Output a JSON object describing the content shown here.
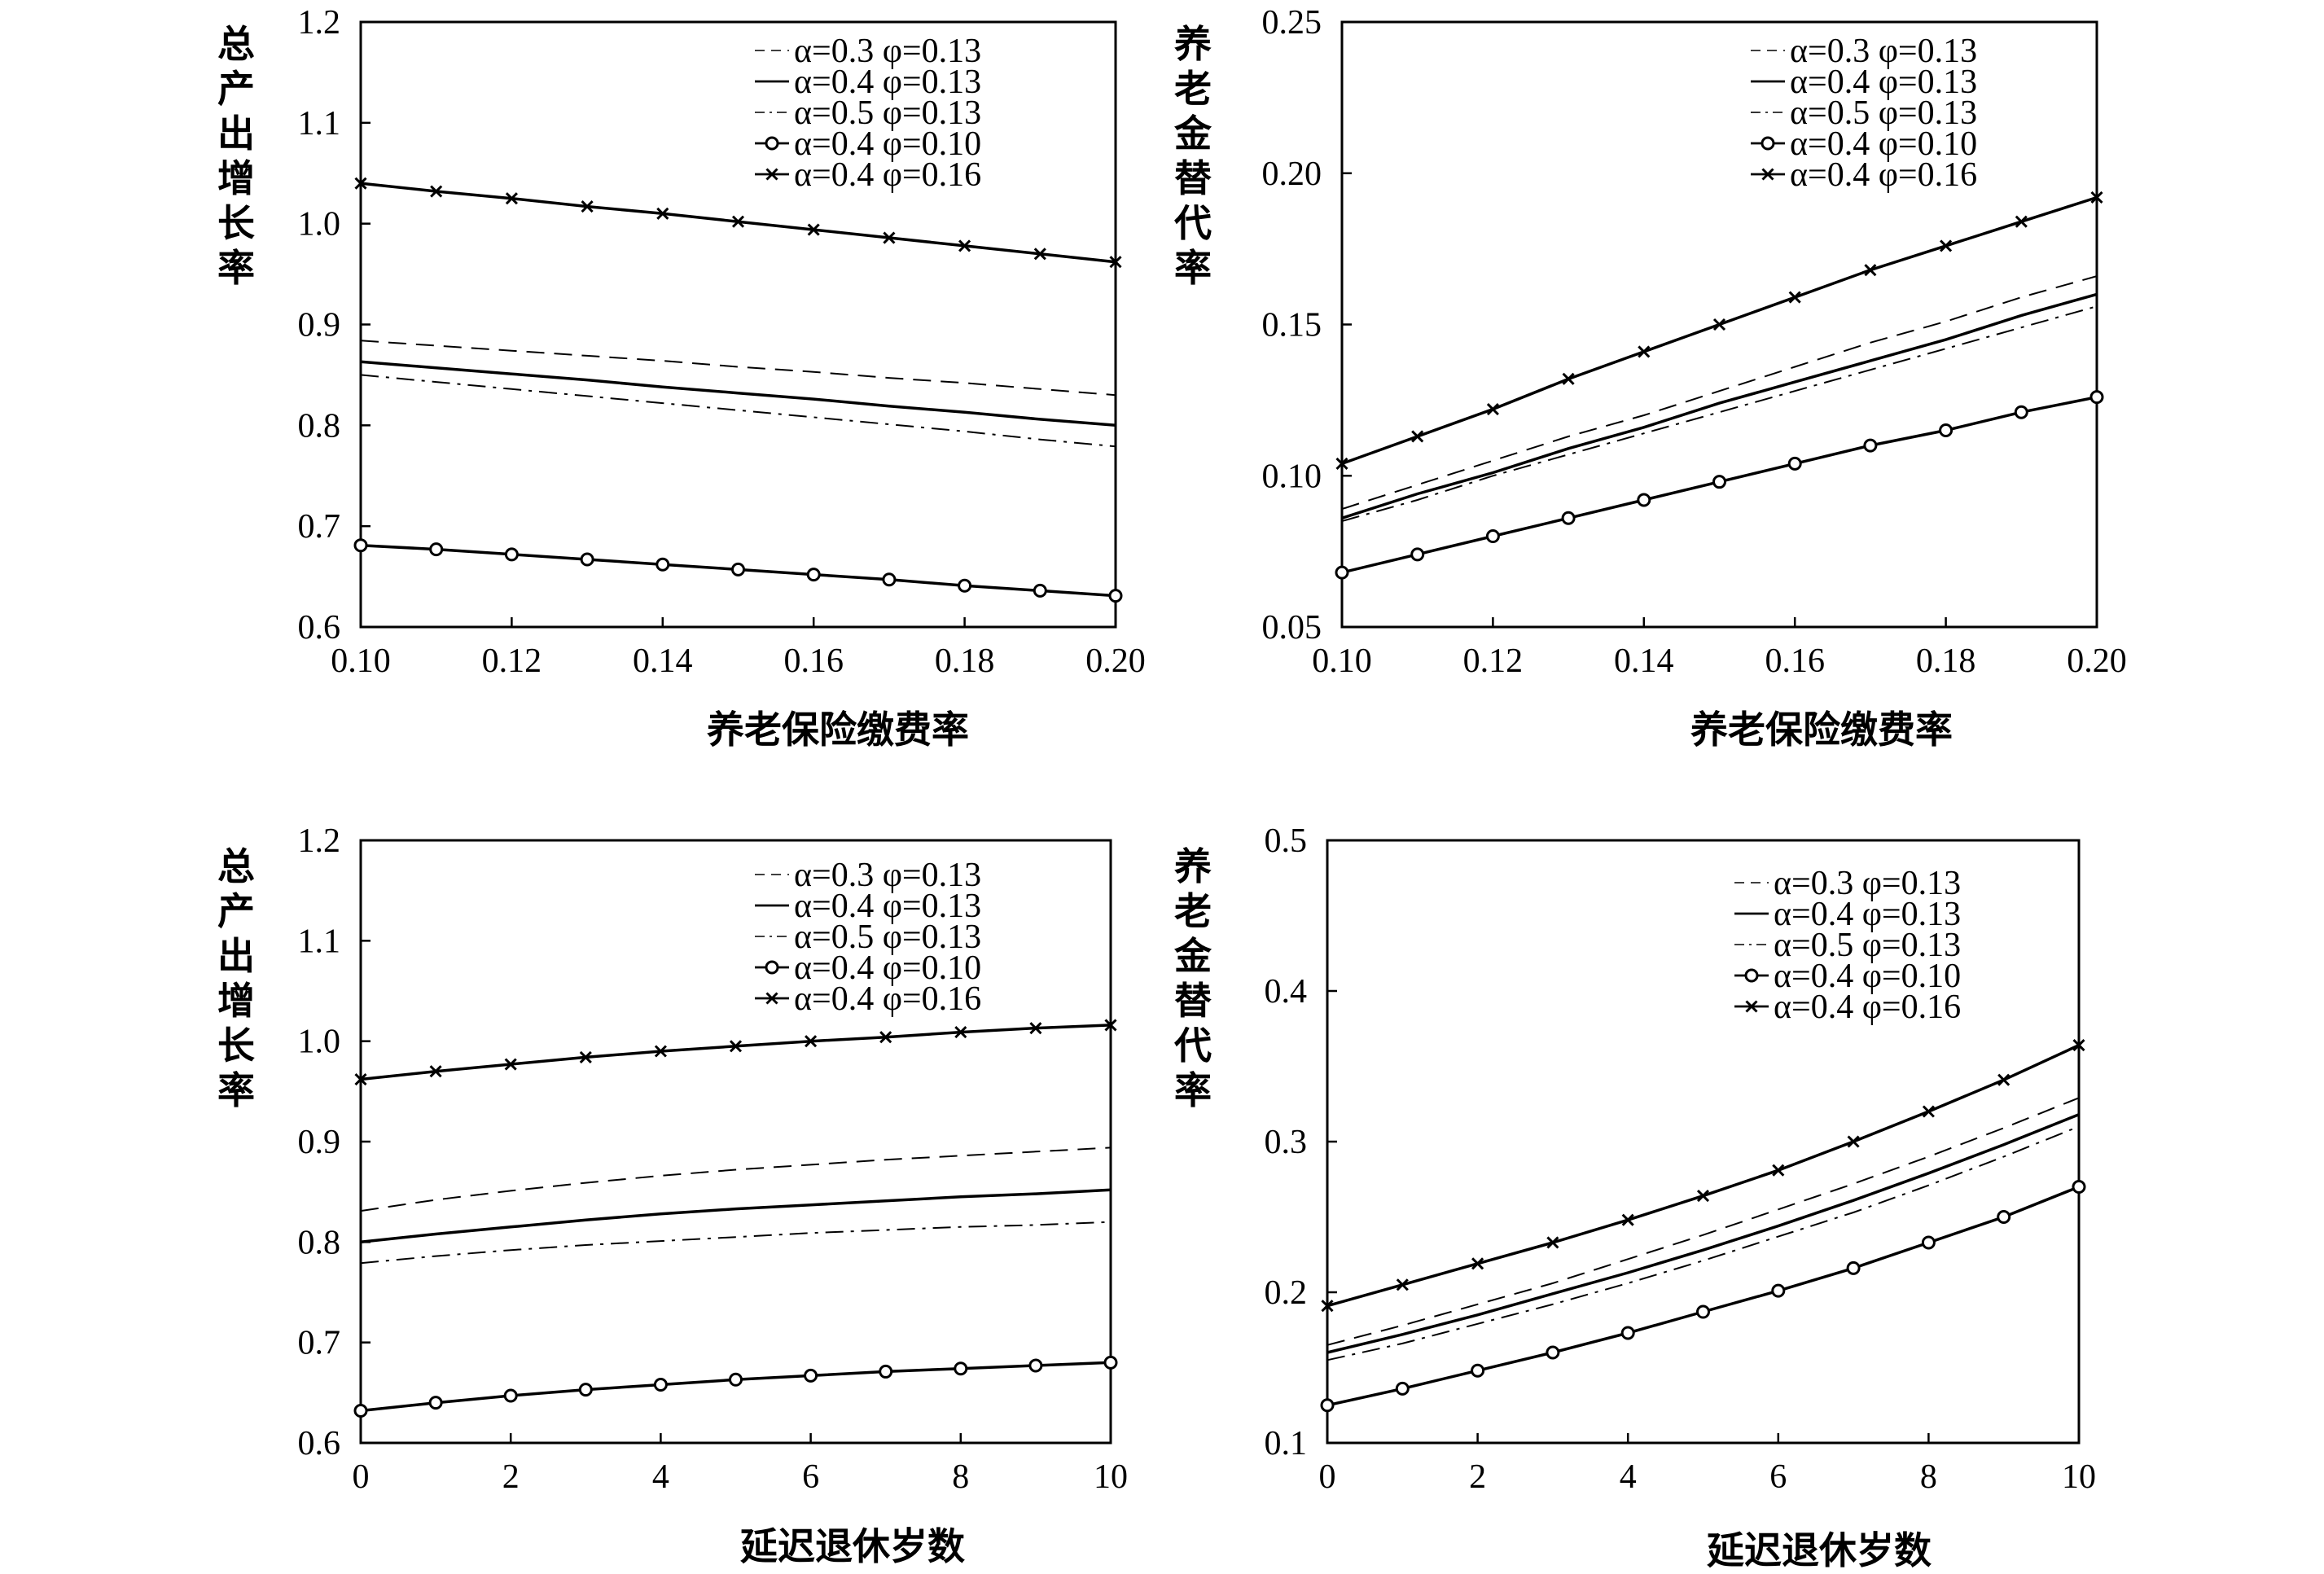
{
  "chart_data": [
    {
      "type": "line",
      "xlabel": "养老保险缴费率",
      "ylabel": "总产出增长率",
      "xlim": [
        0.1,
        0.2
      ],
      "ylim": [
        0.6,
        1.2
      ],
      "xticks": [
        "0.10",
        "0.12",
        "0.14",
        "0.16",
        "0.18",
        "0.20"
      ],
      "yticks": [
        "0.6",
        "0.7",
        "0.8",
        "0.9",
        "1.0",
        "1.1",
        "1.2"
      ],
      "legend_position": "top-right",
      "x": [
        0.1,
        0.11,
        0.12,
        0.13,
        0.14,
        0.15,
        0.16,
        0.17,
        0.18,
        0.19,
        0.2
      ],
      "series": [
        {
          "name": "α=0.3 φ=0.13",
          "style": "dashed",
          "values": [
            0.884,
            0.879,
            0.874,
            0.869,
            0.864,
            0.858,
            0.853,
            0.847,
            0.842,
            0.836,
            0.83
          ]
        },
        {
          "name": "α=0.4 φ=0.13",
          "style": "solid",
          "values": [
            0.863,
            0.857,
            0.851,
            0.845,
            0.838,
            0.832,
            0.826,
            0.819,
            0.813,
            0.806,
            0.8
          ]
        },
        {
          "name": "α=0.5 φ=0.13",
          "style": "dashdot",
          "values": [
            0.85,
            0.843,
            0.836,
            0.829,
            0.822,
            0.815,
            0.808,
            0.801,
            0.794,
            0.786,
            0.779
          ]
        },
        {
          "name": "α=0.4 φ=0.10",
          "style": "circle",
          "values": [
            0.681,
            0.677,
            0.672,
            0.667,
            0.662,
            0.657,
            0.652,
            0.647,
            0.641,
            0.636,
            0.631
          ]
        },
        {
          "name": "α=0.4 φ=0.16",
          "style": "cross",
          "values": [
            1.04,
            1.032,
            1.025,
            1.017,
            1.01,
            1.002,
            0.994,
            0.986,
            0.978,
            0.97,
            0.962
          ]
        }
      ]
    },
    {
      "type": "line",
      "xlabel": "养老保险缴费率",
      "ylabel": "养老金替代率",
      "xlim": [
        0.1,
        0.2
      ],
      "ylim": [
        0.05,
        0.25
      ],
      "xticks": [
        "0.10",
        "0.12",
        "0.14",
        "0.16",
        "0.18",
        "0.20"
      ],
      "yticks": [
        "0.05",
        "0.10",
        "0.15",
        "0.20",
        "0.25"
      ],
      "legend_position": "top-right",
      "x": [
        0.1,
        0.11,
        0.12,
        0.13,
        0.14,
        0.15,
        0.16,
        0.17,
        0.18,
        0.19,
        0.2
      ],
      "series": [
        {
          "name": "α=0.3 φ=0.13",
          "style": "dashed",
          "values": [
            0.089,
            0.097,
            0.105,
            0.113,
            0.12,
            0.128,
            0.136,
            0.144,
            0.151,
            0.159,
            0.166
          ]
        },
        {
          "name": "α=0.4 φ=0.13",
          "style": "solid",
          "values": [
            0.086,
            0.094,
            0.101,
            0.109,
            0.116,
            0.124,
            0.131,
            0.138,
            0.145,
            0.153,
            0.16
          ]
        },
        {
          "name": "α=0.5 φ=0.13",
          "style": "dashdot",
          "values": [
            0.085,
            0.092,
            0.1,
            0.107,
            0.114,
            0.121,
            0.128,
            0.135,
            0.142,
            0.149,
            0.156
          ]
        },
        {
          "name": "α=0.4 φ=0.10",
          "style": "circle",
          "values": [
            0.068,
            0.074,
            0.08,
            0.086,
            0.092,
            0.098,
            0.104,
            0.11,
            0.115,
            0.121,
            0.126
          ]
        },
        {
          "name": "α=0.4 φ=0.16",
          "style": "cross",
          "values": [
            0.104,
            0.113,
            0.122,
            0.132,
            0.141,
            0.15,
            0.159,
            0.168,
            0.176,
            0.184,
            0.192
          ]
        }
      ]
    },
    {
      "type": "line",
      "xlabel": "延迟退休岁数",
      "ylabel": "总产出增长率",
      "xlim": [
        0,
        10
      ],
      "ylim": [
        0.6,
        1.2
      ],
      "xticks": [
        "0",
        "2",
        "4",
        "6",
        "8",
        "10"
      ],
      "yticks": [
        "0.6",
        "0.7",
        "0.8",
        "0.9",
        "1.0",
        "1.1",
        "1.2"
      ],
      "legend_position": "top-right",
      "x": [
        0,
        1,
        2,
        3,
        4,
        5,
        6,
        7,
        8,
        9,
        10
      ],
      "series": [
        {
          "name": "α=0.3 φ=0.13",
          "style": "dashed",
          "values": [
            0.831,
            0.842,
            0.851,
            0.859,
            0.866,
            0.872,
            0.877,
            0.882,
            0.886,
            0.89,
            0.894
          ]
        },
        {
          "name": "α=0.4 φ=0.13",
          "style": "solid",
          "values": [
            0.8,
            0.808,
            0.815,
            0.822,
            0.828,
            0.833,
            0.837,
            0.841,
            0.845,
            0.848,
            0.852
          ]
        },
        {
          "name": "α=0.5 φ=0.13",
          "style": "dashdot",
          "values": [
            0.779,
            0.786,
            0.792,
            0.797,
            0.801,
            0.805,
            0.809,
            0.812,
            0.815,
            0.817,
            0.82
          ]
        },
        {
          "name": "α=0.4 φ=0.10",
          "style": "circle",
          "values": [
            0.632,
            0.64,
            0.647,
            0.653,
            0.658,
            0.663,
            0.667,
            0.671,
            0.674,
            0.677,
            0.68
          ]
        },
        {
          "name": "α=0.4 φ=0.16",
          "style": "cross",
          "values": [
            0.962,
            0.97,
            0.977,
            0.984,
            0.99,
            0.995,
            1.0,
            1.004,
            1.009,
            1.013,
            1.016
          ]
        }
      ]
    },
    {
      "type": "line",
      "xlabel": "延迟退休岁数",
      "ylabel": "养老金替代率",
      "xlim": [
        0,
        10
      ],
      "ylim": [
        0.1,
        0.5
      ],
      "xticks": [
        "0",
        "2",
        "4",
        "6",
        "8",
        "10"
      ],
      "yticks": [
        "0.1",
        "0.2",
        "0.3",
        "0.4",
        "0.5"
      ],
      "legend_position": "top-right",
      "x": [
        0,
        1,
        2,
        3,
        4,
        5,
        6,
        7,
        8,
        9,
        10
      ],
      "series": [
        {
          "name": "α=0.3 φ=0.13",
          "style": "dashed",
          "values": [
            0.165,
            0.178,
            0.192,
            0.206,
            0.222,
            0.238,
            0.255,
            0.272,
            0.29,
            0.309,
            0.329
          ]
        },
        {
          "name": "α=0.4 φ=0.13",
          "style": "solid",
          "values": [
            0.16,
            0.172,
            0.185,
            0.199,
            0.213,
            0.228,
            0.244,
            0.261,
            0.279,
            0.298,
            0.318
          ]
        },
        {
          "name": "α=0.5 φ=0.13",
          "style": "dashdot",
          "values": [
            0.155,
            0.166,
            0.179,
            0.192,
            0.206,
            0.221,
            0.237,
            0.253,
            0.271,
            0.29,
            0.31
          ]
        },
        {
          "name": "α=0.4 φ=0.10",
          "style": "circle",
          "values": [
            0.125,
            0.136,
            0.148,
            0.16,
            0.173,
            0.187,
            0.201,
            0.216,
            0.233,
            0.25,
            0.27
          ]
        },
        {
          "name": "α=0.4 φ=0.16",
          "style": "cross",
          "values": [
            0.191,
            0.205,
            0.219,
            0.233,
            0.248,
            0.264,
            0.281,
            0.3,
            0.32,
            0.341,
            0.364
          ]
        }
      ]
    }
  ]
}
